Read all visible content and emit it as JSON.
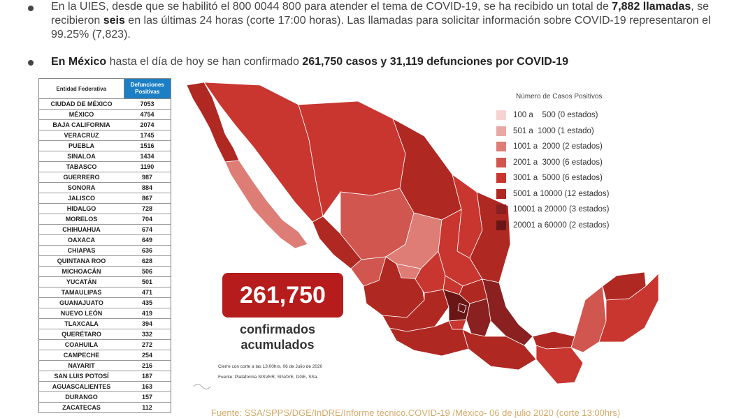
{
  "paragraph1": {
    "t1": "En la UIES, desde que se habilitó el 800 0044 800 para atender el tema de COVID-19, se ha recibido un total de ",
    "b1": "7,882 llamadas",
    "t2": ", se recibieron ",
    "b2": "seis",
    "t3": " en las últimas 24 horas (corte 17:00 horas). Las llamadas para solicitar información sobre COVID-19 representaron el 99.25% (7,823)."
  },
  "paragraph2": {
    "b1": "En México",
    "t1": " hasta el día de hoy se han confirmado ",
    "b2": "261,750 casos y 31,119 defunciones por COVID-19"
  },
  "table": {
    "header_entity": "Entidad Federativa",
    "header_deaths": "Defunciones Positivas",
    "rows": [
      {
        "entity": "CIUDAD DE MÉXICO",
        "deaths": "7053"
      },
      {
        "entity": "MÉXICO",
        "deaths": "4754"
      },
      {
        "entity": "BAJA CALIFORNIA",
        "deaths": "2074"
      },
      {
        "entity": "VERACRUZ",
        "deaths": "1745"
      },
      {
        "entity": "PUEBLA",
        "deaths": "1516"
      },
      {
        "entity": "SINALOA",
        "deaths": "1434"
      },
      {
        "entity": "TABASCO",
        "deaths": "1190"
      },
      {
        "entity": "GUERRERO",
        "deaths": "987"
      },
      {
        "entity": "SONORA",
        "deaths": "884"
      },
      {
        "entity": "JALISCO",
        "deaths": "867"
      },
      {
        "entity": "HIDALGO",
        "deaths": "728"
      },
      {
        "entity": "MORELOS",
        "deaths": "704"
      },
      {
        "entity": "CHIHUAHUA",
        "deaths": "674"
      },
      {
        "entity": "OAXACA",
        "deaths": "649"
      },
      {
        "entity": "CHIAPAS",
        "deaths": "636"
      },
      {
        "entity": "QUINTANA ROO",
        "deaths": "628"
      },
      {
        "entity": "MICHOACÁN",
        "deaths": "506"
      },
      {
        "entity": "YUCATÁN",
        "deaths": "501"
      },
      {
        "entity": "TAMAULIPAS",
        "deaths": "471"
      },
      {
        "entity": "GUANAJUATO",
        "deaths": "435"
      },
      {
        "entity": "NUEVO LEÓN",
        "deaths": "419"
      },
      {
        "entity": "TLAXCALA",
        "deaths": "394"
      },
      {
        "entity": "QUERÉTARO",
        "deaths": "332"
      },
      {
        "entity": "COAHUILA",
        "deaths": "272"
      },
      {
        "entity": "CAMPECHE",
        "deaths": "254"
      },
      {
        "entity": "NAYARIT",
        "deaths": "216"
      },
      {
        "entity": "SAN LUIS POTOSÍ",
        "deaths": "187"
      },
      {
        "entity": "AGUASCALIENTES",
        "deaths": "163"
      },
      {
        "entity": "DURANGO",
        "deaths": "157"
      },
      {
        "entity": "ZACATECAS",
        "deaths": "112"
      }
    ]
  },
  "legend": {
    "title": "Número de Casos Positivos",
    "items": [
      {
        "label": "100 a    500 (0 estados)",
        "color": "#f6d3d3"
      },
      {
        "label": "501 a  1000 (1 estado)",
        "color": "#eaa8a5"
      },
      {
        "label": "1001 a  2000 (2 estados)",
        "color": "#dd7d76"
      },
      {
        "label": "2001 a  3000 (6 estados)",
        "color": "#d0564f"
      },
      {
        "label": "3001 a  5000 (6 estados)",
        "color": "#c8362f"
      },
      {
        "label": "5001 a 10000 (12 estados)",
        "color": "#b02822"
      },
      {
        "label": "10001 a 20000 (3 estados)",
        "color": "#8a2020"
      },
      {
        "label": "20001 a 60000 (2 estados)",
        "color": "#6b1616"
      }
    ]
  },
  "summary": {
    "total": "261,750",
    "caption": "confirmados acumulados"
  },
  "map_notes": {
    "cierre": "Cierre con corte a las 13:00hrs, 06 de Julio de 2020",
    "fuente": "Fuente: Plataforma SISVER, SINAVE, DGE, SSa."
  },
  "footer_source": "Fuente: SSA/SPPS/DGE/InDRE/Informe técnico.COVID-19 /México- 06 de julio 2020 (corte 13:00hrs)"
}
